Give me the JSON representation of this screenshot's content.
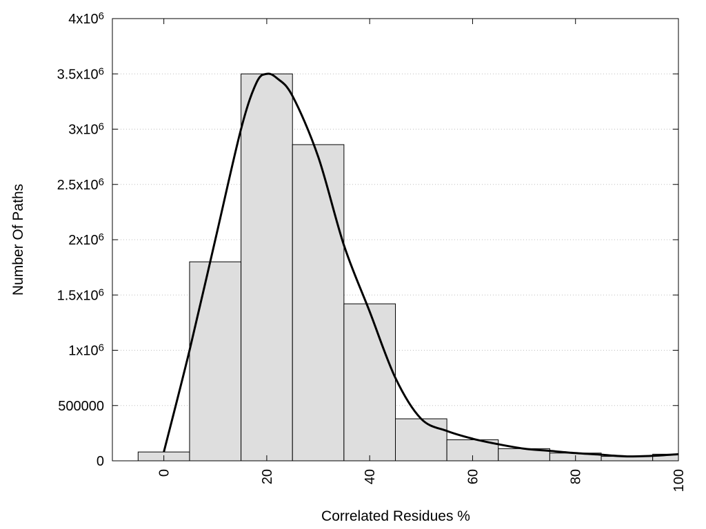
{
  "chart_data": {
    "type": "bar",
    "xlabel": "Correlated Residues %",
    "ylabel": "Number Of Paths",
    "xlim": [
      -10,
      100
    ],
    "ylim": [
      0,
      4000000
    ],
    "grid": true,
    "x_ticks": [
      0,
      20,
      40,
      60,
      80,
      100
    ],
    "x_tick_labels": [
      "0",
      "20",
      "40",
      "60",
      "80",
      "100"
    ],
    "y_ticks": [
      0,
      500000,
      1000000,
      1500000,
      2000000,
      2500000,
      3000000,
      3500000,
      4000000
    ],
    "y_tick_labels": [
      {
        "base": "0",
        "exp": ""
      },
      {
        "base": "500000",
        "exp": ""
      },
      {
        "base": "1x10",
        "exp": "6"
      },
      {
        "base": "1.5x10",
        "exp": "6"
      },
      {
        "base": "2x10",
        "exp": "6"
      },
      {
        "base": "2.5x10",
        "exp": "6"
      },
      {
        "base": "3x10",
        "exp": "6"
      },
      {
        "base": "3.5x10",
        "exp": "6"
      },
      {
        "base": "4x10",
        "exp": "6"
      }
    ],
    "bins": [
      {
        "from": -5,
        "to": 5,
        "value": 80000
      },
      {
        "from": 5,
        "to": 15,
        "value": 1800000
      },
      {
        "from": 15,
        "to": 25,
        "value": 3500000
      },
      {
        "from": 25,
        "to": 35,
        "value": 2860000
      },
      {
        "from": 35,
        "to": 45,
        "value": 1420000
      },
      {
        "from": 45,
        "to": 55,
        "value": 380000
      },
      {
        "from": 55,
        "to": 65,
        "value": 190000
      },
      {
        "from": 65,
        "to": 75,
        "value": 110000
      },
      {
        "from": 75,
        "to": 85,
        "value": 70000
      },
      {
        "from": 85,
        "to": 95,
        "value": 40000
      },
      {
        "from": 95,
        "to": 100,
        "value": 60000
      }
    ],
    "curve": [
      {
        "x": 0,
        "y": 80000
      },
      {
        "x": 5,
        "y": 1000000
      },
      {
        "x": 10,
        "y": 2000000
      },
      {
        "x": 15,
        "y": 3000000
      },
      {
        "x": 18,
        "y": 3420000
      },
      {
        "x": 20,
        "y": 3500000
      },
      {
        "x": 22,
        "y": 3460000
      },
      {
        "x": 25,
        "y": 3300000
      },
      {
        "x": 30,
        "y": 2750000
      },
      {
        "x": 35,
        "y": 1950000
      },
      {
        "x": 40,
        "y": 1350000
      },
      {
        "x": 45,
        "y": 750000
      },
      {
        "x": 50,
        "y": 380000
      },
      {
        "x": 55,
        "y": 270000
      },
      {
        "x": 60,
        "y": 200000
      },
      {
        "x": 65,
        "y": 150000
      },
      {
        "x": 70,
        "y": 110000
      },
      {
        "x": 75,
        "y": 90000
      },
      {
        "x": 80,
        "y": 70000
      },
      {
        "x": 85,
        "y": 55000
      },
      {
        "x": 90,
        "y": 40000
      },
      {
        "x": 95,
        "y": 45000
      },
      {
        "x": 100,
        "y": 60000
      }
    ]
  }
}
